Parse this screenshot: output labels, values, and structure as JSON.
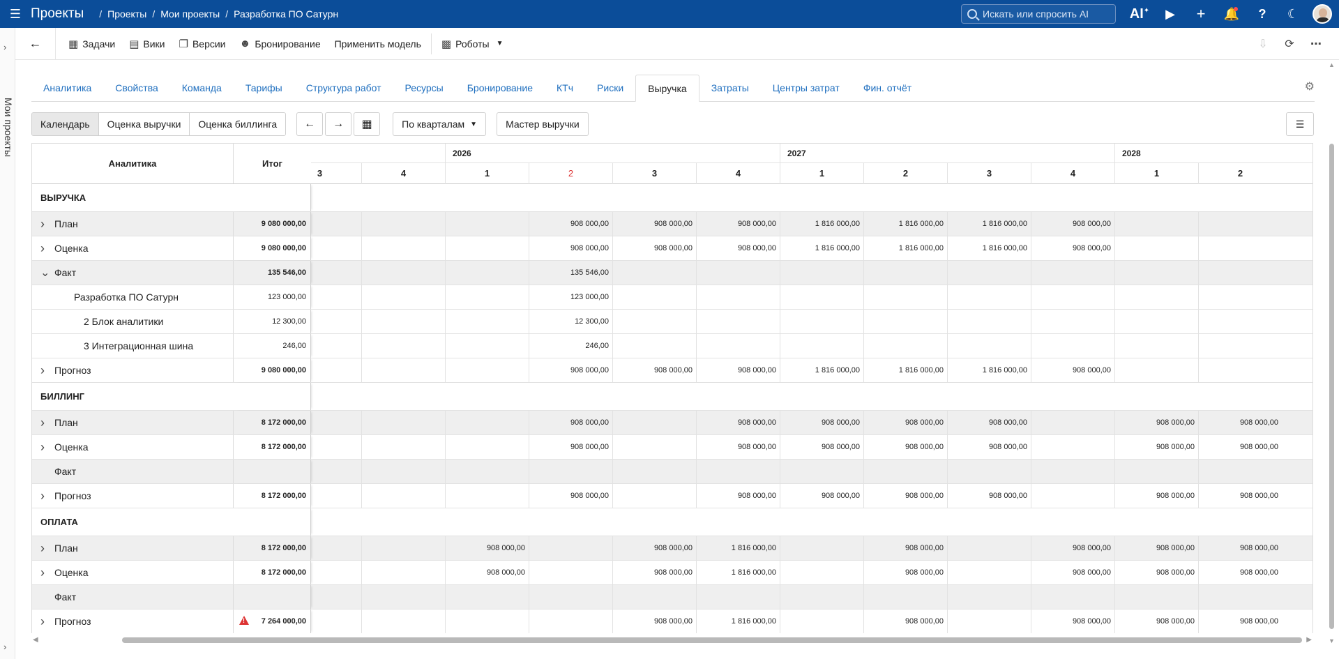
{
  "topbar": {
    "app_title": "Проекты",
    "breadcrumbs": [
      "Проекты",
      "Мои проекты",
      "Разработка ПО Сатурн"
    ],
    "search_placeholder": "Искать или спросить AI",
    "ai_label": "AI"
  },
  "rail": {
    "label": "Мои проекты"
  },
  "toolbar": {
    "items": [
      {
        "label": "Задачи",
        "icon": "grid-icon"
      },
      {
        "label": "Вики",
        "icon": "book-icon"
      },
      {
        "label": "Версии",
        "icon": "copy-icon"
      },
      {
        "label": "Бронирование",
        "icon": "person-calendar-icon"
      }
    ],
    "apply_model": "Применить модель",
    "robots": "Роботы"
  },
  "tabs": [
    {
      "label": "Аналитика",
      "active": false
    },
    {
      "label": "Свойства",
      "active": false
    },
    {
      "label": "Команда",
      "active": false
    },
    {
      "label": "Тарифы",
      "active": false
    },
    {
      "label": "Структура работ",
      "active": false
    },
    {
      "label": "Ресурсы",
      "active": false
    },
    {
      "label": "Бронирование",
      "active": false
    },
    {
      "label": "КТч",
      "active": false
    },
    {
      "label": "Риски",
      "active": false
    },
    {
      "label": "Выручка",
      "active": true
    },
    {
      "label": "Затраты",
      "active": false
    },
    {
      "label": "Центры затрат",
      "active": false
    },
    {
      "label": "Фин. отчёт",
      "active": false
    }
  ],
  "controls": {
    "views": [
      {
        "label": "Календарь",
        "active": true
      },
      {
        "label": "Оценка выручки",
        "active": false
      },
      {
        "label": "Оценка биллинга",
        "active": false
      }
    ],
    "period": "По кварталам",
    "wizard": "Мастер выручки"
  },
  "grid": {
    "col_analytics": "Аналитика",
    "col_total": "Итог",
    "years": [
      {
        "label": "2026",
        "start": 2,
        "span": 4
      },
      {
        "label": "2027",
        "start": 6,
        "span": 4
      },
      {
        "label": "2028",
        "start": 10,
        "span": 2
      }
    ],
    "quarters": [
      {
        "label": "3",
        "red": false
      },
      {
        "label": "4",
        "red": false
      },
      {
        "label": "1",
        "red": false
      },
      {
        "label": "2",
        "red": true
      },
      {
        "label": "3",
        "red": false
      },
      {
        "label": "4",
        "red": false
      },
      {
        "label": "1",
        "red": false
      },
      {
        "label": "2",
        "red": false
      },
      {
        "label": "3",
        "red": false
      },
      {
        "label": "4",
        "red": false
      },
      {
        "label": "1",
        "red": false
      },
      {
        "label": "2",
        "red": false
      }
    ],
    "rows": [
      {
        "type": "section",
        "label": "ВЫРУЧКА"
      },
      {
        "label": "План",
        "expander": ">",
        "indent": 0,
        "total": "9 080 000,00",
        "bold": true,
        "shade": "grey",
        "values": [
          "",
          "",
          "",
          "908 000,00",
          "908 000,00",
          "908 000,00",
          "1 816 000,00",
          "1 816 000,00",
          "1 816 000,00",
          "908 000,00",
          "",
          ""
        ]
      },
      {
        "label": "Оценка",
        "expander": ">",
        "indent": 0,
        "total": "9 080 000,00",
        "bold": true,
        "shade": "white",
        "values": [
          "",
          "",
          "",
          "908 000,00",
          "908 000,00",
          "908 000,00",
          "1 816 000,00",
          "1 816 000,00",
          "1 816 000,00",
          "908 000,00",
          "",
          ""
        ]
      },
      {
        "label": "Факт",
        "expander": "v",
        "indent": 0,
        "total": "135 546,00",
        "bold": true,
        "shade": "grey",
        "values": [
          "",
          "",
          "",
          "135 546,00",
          "",
          "",
          "",
          "",
          "",
          "",
          "",
          ""
        ]
      },
      {
        "label": "Разработка ПО Сатурн",
        "expander": "",
        "indent": 1,
        "total": "123 000,00",
        "bold": false,
        "shade": "white",
        "totshade": "grey",
        "values": [
          "",
          "",
          "",
          "123 000,00",
          "",
          "",
          "",
          "",
          "",
          "",
          "",
          ""
        ]
      },
      {
        "label": "2 Блок аналитики",
        "expander": "",
        "indent": 2,
        "total": "12 300,00",
        "bold": false,
        "shade": "white",
        "totshade": "grey",
        "values": [
          "",
          "",
          "",
          "12 300,00",
          "",
          "",
          "",
          "",
          "",
          "",
          "",
          ""
        ]
      },
      {
        "label": "3 Интеграционная шина",
        "expander": "",
        "indent": 2,
        "total": "246,00",
        "bold": false,
        "shade": "white",
        "totshade": "grey",
        "values": [
          "",
          "",
          "",
          "246,00",
          "",
          "",
          "",
          "",
          "",
          "",
          "",
          ""
        ]
      },
      {
        "label": "Прогноз",
        "expander": ">",
        "indent": 0,
        "total": "9 080 000,00",
        "bold": true,
        "shade": "white",
        "values": [
          "",
          "",
          "",
          "908 000,00",
          "908 000,00",
          "908 000,00",
          "1 816 000,00",
          "1 816 000,00",
          "1 816 000,00",
          "908 000,00",
          "",
          ""
        ]
      },
      {
        "type": "section",
        "label": "БИЛЛИНГ"
      },
      {
        "label": "План",
        "expander": ">",
        "indent": 0,
        "total": "8 172 000,00",
        "bold": true,
        "shade": "grey",
        "values": [
          "",
          "",
          "",
          "908 000,00",
          "",
          "908 000,00",
          "908 000,00",
          "908 000,00",
          "908 000,00",
          "",
          "908 000,00",
          "908 000,00"
        ]
      },
      {
        "label": "Оценка",
        "expander": ">",
        "indent": 0,
        "total": "8 172 000,00",
        "bold": true,
        "shade": "white",
        "values": [
          "",
          "",
          "",
          "908 000,00",
          "",
          "908 000,00",
          "908 000,00",
          "908 000,00",
          "908 000,00",
          "",
          "908 000,00",
          "908 000,00"
        ]
      },
      {
        "label": "Факт",
        "expander": "",
        "indent": 0,
        "total": "",
        "bold": true,
        "shade": "grey",
        "values": [
          "",
          "",
          "",
          "",
          "",
          "",
          "",
          "",
          "",
          "",
          "",
          ""
        ]
      },
      {
        "label": "Прогноз",
        "expander": ">",
        "indent": 0,
        "total": "8 172 000,00",
        "bold": true,
        "shade": "white",
        "values": [
          "",
          "",
          "",
          "908 000,00",
          "",
          "908 000,00",
          "908 000,00",
          "908 000,00",
          "908 000,00",
          "",
          "908 000,00",
          "908 000,00"
        ]
      },
      {
        "type": "section",
        "label": "ОПЛАТА"
      },
      {
        "label": "План",
        "expander": ">",
        "indent": 0,
        "total": "8 172 000,00",
        "bold": true,
        "shade": "grey",
        "values": [
          "",
          "",
          "908 000,00",
          "",
          "908 000,00",
          "1 816 000,00",
          "",
          "908 000,00",
          "",
          "908 000,00",
          "908 000,00",
          "908 000,00"
        ]
      },
      {
        "label": "Оценка",
        "expander": ">",
        "indent": 0,
        "total": "8 172 000,00",
        "bold": true,
        "shade": "white",
        "values": [
          "",
          "",
          "908 000,00",
          "",
          "908 000,00",
          "1 816 000,00",
          "",
          "908 000,00",
          "",
          "908 000,00",
          "908 000,00",
          "908 000,00"
        ]
      },
      {
        "label": "Факт",
        "expander": "",
        "indent": 0,
        "total": "",
        "bold": true,
        "shade": "grey",
        "values": [
          "",
          "",
          "",
          "",
          "",
          "",
          "",
          "",
          "",
          "",
          "",
          ""
        ]
      },
      {
        "label": "Прогноз",
        "expander": ">",
        "indent": 0,
        "total": "7 264 000,00",
        "bold": true,
        "shade": "white",
        "warning": true,
        "values": [
          "",
          "",
          "",
          "",
          "908 000,00",
          "1 816 000,00",
          "",
          "908 000,00",
          "",
          "908 000,00",
          "908 000,00",
          "908 000,00"
        ]
      }
    ]
  }
}
